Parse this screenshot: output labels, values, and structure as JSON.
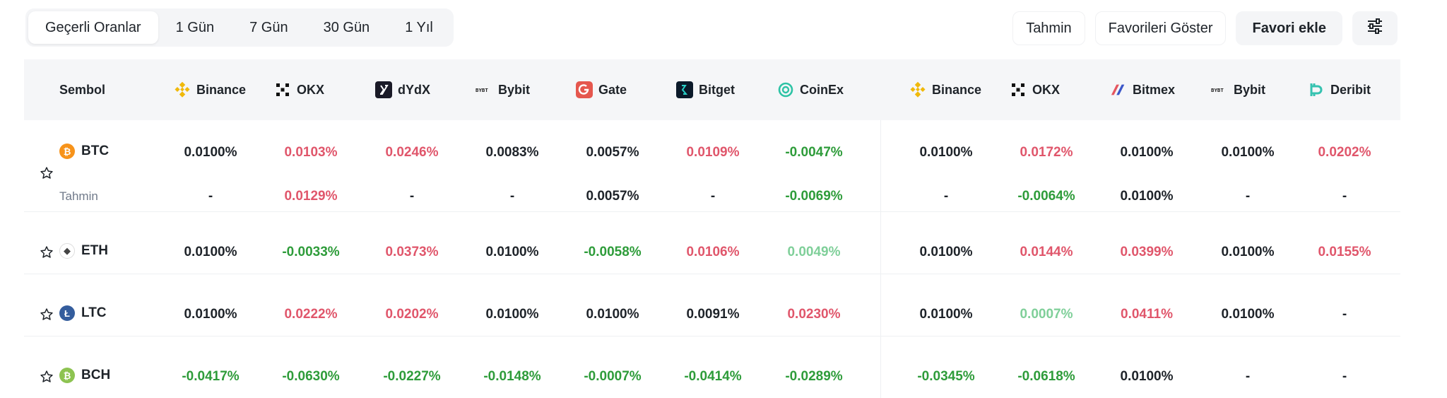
{
  "period_tabs": [
    {
      "label": "Geçerli Oranlar",
      "active": true
    },
    {
      "label": "1 Gün"
    },
    {
      "label": "7 Gün"
    },
    {
      "label": "30 Gün"
    },
    {
      "label": "1 Yıl"
    }
  ],
  "actions": {
    "forecast": "Tahmin",
    "show_favorites": "Favorileri Göster",
    "add_favorite": "Favori ekle",
    "settings_icon": "sliders-icon"
  },
  "table": {
    "symbol_header": "Sembol",
    "exchanges": [
      {
        "name": "Binance",
        "icon": "binance-logo"
      },
      {
        "name": "OKX",
        "icon": "okx-logo"
      },
      {
        "name": "dYdX",
        "icon": "dydx-logo"
      },
      {
        "name": "Bybit",
        "icon": "bybit-logo"
      },
      {
        "name": "Gate",
        "icon": "gate-logo"
      },
      {
        "name": "Bitget",
        "icon": "bitget-logo"
      },
      {
        "name": "CoinEx",
        "icon": "coinex-logo"
      },
      {
        "name": "Binance",
        "icon": "binance-logo"
      },
      {
        "name": "OKX",
        "icon": "okx-logo"
      },
      {
        "name": "Bitmex",
        "icon": "bitmex-logo"
      },
      {
        "name": "Bybit",
        "icon": "bybit-logo"
      },
      {
        "name": "Deribit",
        "icon": "deribit-logo"
      }
    ],
    "rows": [
      {
        "symbol": "BTC",
        "coin_color": "#f7931a",
        "coin_glyph": "₿",
        "values": [
          "0.0100%",
          "0.0103%",
          "0.0246%",
          "0.0083%",
          "0.0057%",
          "0.0109%",
          "-0.0047%",
          "0.0100%",
          "0.0172%",
          "0.0100%",
          "0.0100%",
          "0.0202%"
        ],
        "tones": [
          "neu",
          "pos",
          "pos",
          "neu",
          "neu",
          "pos",
          "neg",
          "neu",
          "pos",
          "neu",
          "neu",
          "pos"
        ],
        "forecast_label": "Tahmin",
        "forecast": [
          "-",
          "0.0129%",
          "-",
          "-",
          "0.0057%",
          "-",
          "-0.0069%",
          "-",
          "-0.0064%",
          "0.0100%",
          "-",
          "-"
        ],
        "forecast_tones": [
          "neu",
          "pos",
          "neu",
          "neu",
          "neu",
          "neu",
          "neg",
          "neu",
          "neg",
          "neu",
          "neu",
          "neu"
        ]
      },
      {
        "symbol": "ETH",
        "coin_color": "#ffffff",
        "coin_glyph": "◆",
        "values": [
          "0.0100%",
          "-0.0033%",
          "0.0373%",
          "0.0100%",
          "-0.0058%",
          "0.0106%",
          "0.0049%",
          "0.0100%",
          "0.0144%",
          "0.0399%",
          "0.0100%",
          "0.0155%"
        ],
        "tones": [
          "neu",
          "neg",
          "pos",
          "neu",
          "neg",
          "pos",
          "light",
          "neu",
          "pos",
          "pos",
          "neu",
          "pos"
        ]
      },
      {
        "symbol": "LTC",
        "coin_color": "#345d9d",
        "coin_glyph": "Ł",
        "values": [
          "0.0100%",
          "0.0222%",
          "0.0202%",
          "0.0100%",
          "0.0100%",
          "0.0091%",
          "0.0230%",
          "0.0100%",
          "0.0007%",
          "0.0411%",
          "0.0100%",
          "-"
        ],
        "tones": [
          "neu",
          "pos",
          "pos",
          "neu",
          "neu",
          "neu",
          "pos",
          "neu",
          "light",
          "pos",
          "neu",
          "neu"
        ]
      },
      {
        "symbol": "BCH",
        "coin_color": "#8dc351",
        "coin_glyph": "₿",
        "values": [
          "-0.0417%",
          "-0.0630%",
          "-0.0227%",
          "-0.0148%",
          "-0.0007%",
          "-0.0414%",
          "-0.0289%",
          "-0.0345%",
          "-0.0618%",
          "0.0100%",
          "-",
          "-"
        ],
        "tones": [
          "neg",
          "neg",
          "neg",
          "neg",
          "neg",
          "neg",
          "neg",
          "neg",
          "neg",
          "neu",
          "neu",
          "neu"
        ]
      }
    ]
  },
  "colors": {
    "positive": "#e0566b",
    "negative": "#2e9c3a",
    "accent_binance": "#f0b90b"
  }
}
